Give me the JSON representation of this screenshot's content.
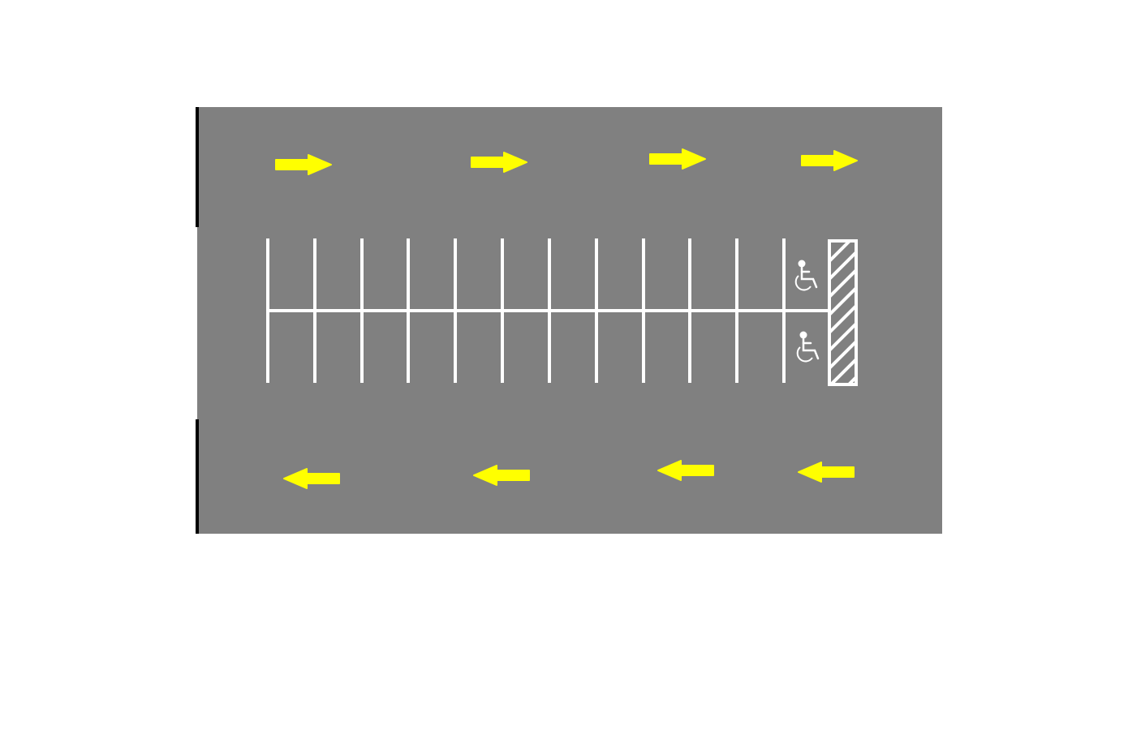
{
  "colors": {
    "background": "#ffffff",
    "asphalt": "#808080",
    "line": "#ffffff",
    "arrow": "#ffff00",
    "wall": "#000000"
  },
  "lot": {
    "stall_divider_count": 12,
    "accessible_stall_count": 2,
    "accessible_icon": "wheelchair-icon",
    "hatched_access_aisle": true,
    "traffic": {
      "upper_lane_direction": "right",
      "upper_lane_arrow_count": 4,
      "lower_lane_direction": "left",
      "lower_lane_arrow_count": 4,
      "arrow_icon": "direction-arrow-icon"
    },
    "wall_segments": 2
  }
}
